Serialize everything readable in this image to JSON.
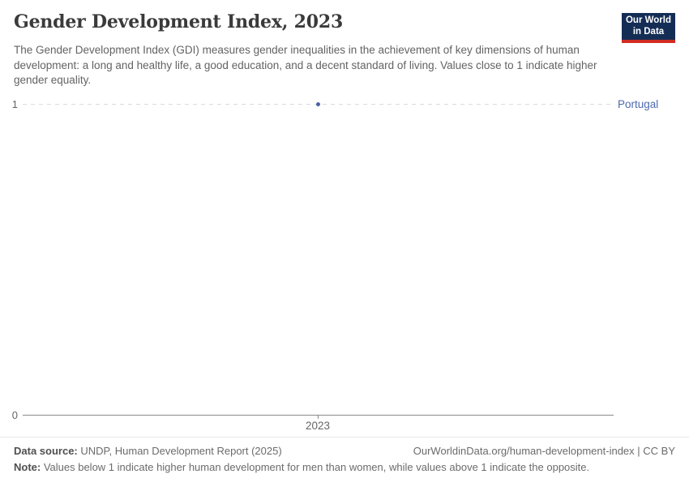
{
  "header": {
    "title": "Gender Development Index, 2023",
    "subtitle": "The Gender Development Index (GDI) measures gender inequalities in the achievement of key dimensions of human development: a long and healthy life, a good education, and a decent standard of living. Values close to 1 indicate higher gender equality.",
    "logo": {
      "line1": "Our World",
      "line2": "in Data"
    }
  },
  "chart_data": {
    "type": "scatter",
    "title": "Gender Development Index, 2023",
    "x": [
      2023
    ],
    "categories": [
      "2023"
    ],
    "series": [
      {
        "name": "Portugal",
        "values": [
          1.0
        ]
      }
    ],
    "xlabel": "",
    "ylabel": "",
    "ylim": [
      0,
      1
    ],
    "yticks": [
      "0",
      "1"
    ],
    "xticks": [
      "2023"
    ],
    "grid": "horizontal dashed gridline at y=1 only",
    "legend_position": "label right of plot, aligned with value",
    "point_color": "#4c62a4"
  },
  "axes": {
    "y_top_label": "1",
    "y_bottom_label": "0",
    "x_tick_label": "2023"
  },
  "entity": {
    "label": "Portugal"
  },
  "footer": {
    "data_source_label": "Data source:",
    "data_source_value": " UNDP, Human Development Report (2025)",
    "rights": "OurWorldinData.org/human-development-index | CC BY",
    "note_label": "Note:",
    "note_value": " Values below 1 indicate higher human development for men than women, while values above 1 indicate the opposite."
  },
  "colors": {
    "accent_series": "#4b69af",
    "logo_navy": "#142d55",
    "logo_red": "#d22d23",
    "gridline": "#dcdcdc",
    "axis": "#8a8a8a"
  }
}
